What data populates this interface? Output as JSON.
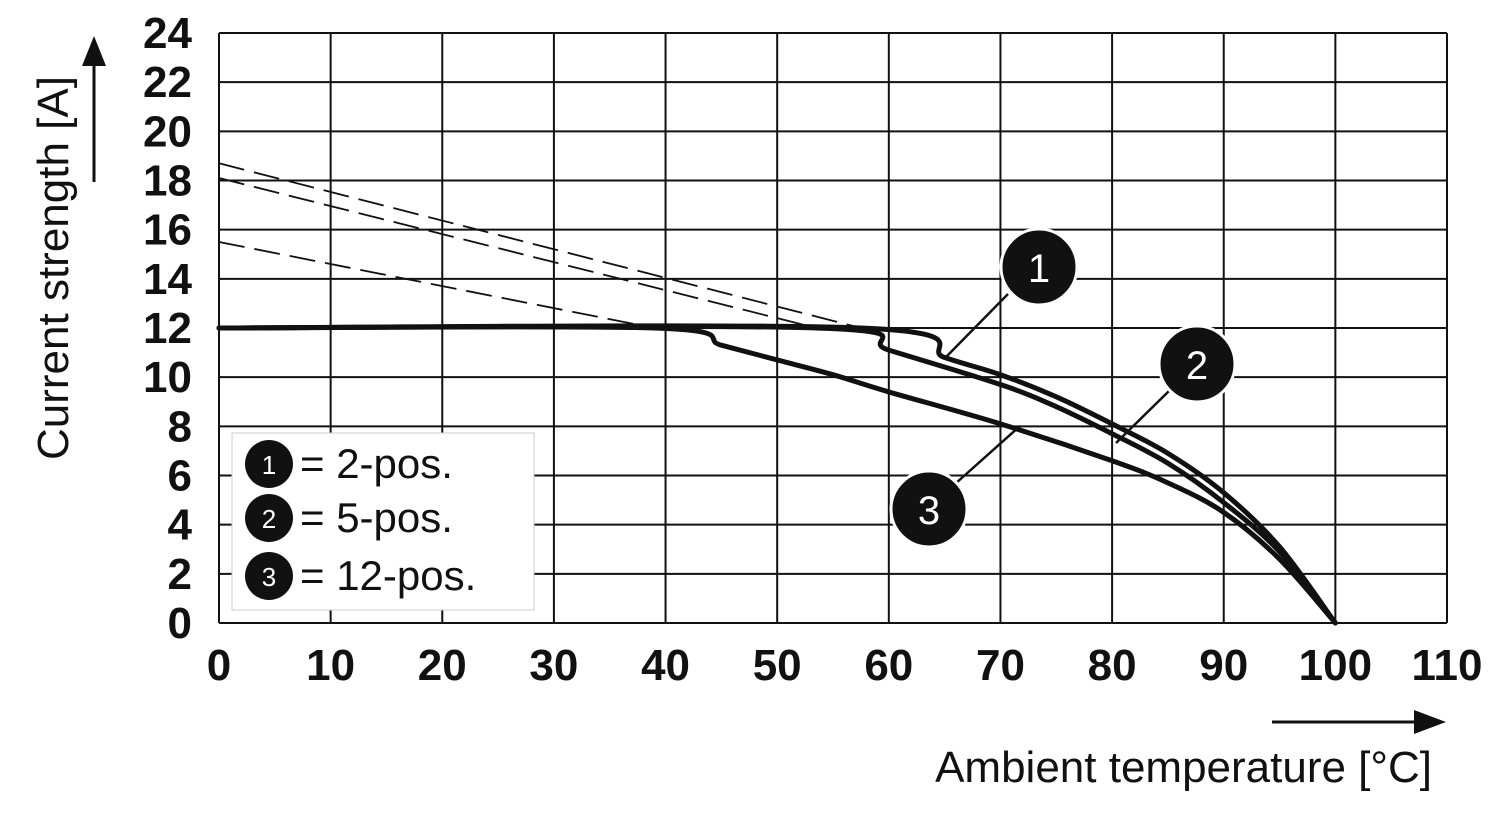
{
  "chart_data": {
    "type": "line",
    "xlabel": "Ambient temperature [°C]",
    "ylabel": "Current strength [A]",
    "xlim": [
      0,
      110
    ],
    "ylim": [
      0,
      24
    ],
    "x_ticks": [
      "0",
      "10",
      "20",
      "30",
      "40",
      "50",
      "60",
      "70",
      "80",
      "90",
      "100",
      "110"
    ],
    "y_ticks": [
      "0",
      "2",
      "4",
      "6",
      "8",
      "10",
      "12",
      "14",
      "16",
      "18",
      "20",
      "22",
      "24"
    ],
    "grid": true,
    "legend_position": "bottom-left",
    "series": [
      {
        "name": "2-pos.",
        "marker": "1",
        "points": [
          [
            0,
            12
          ],
          [
            57.5,
            12
          ],
          [
            65,
            10.8
          ],
          [
            70,
            10.1
          ],
          [
            75,
            9.2
          ],
          [
            80,
            8.1
          ],
          [
            85,
            6.9
          ],
          [
            90,
            5.3
          ],
          [
            95,
            3.1
          ],
          [
            100,
            0
          ]
        ],
        "extrapolation": [
          [
            0,
            18.7
          ],
          [
            57.5,
            12
          ]
        ]
      },
      {
        "name": "5-pos.",
        "marker": "2",
        "points": [
          [
            0,
            12
          ],
          [
            53.5,
            12
          ],
          [
            60,
            11.1
          ],
          [
            70,
            9.7
          ],
          [
            75,
            8.8
          ],
          [
            80,
            7.7
          ],
          [
            85,
            6.5
          ],
          [
            90,
            4.9
          ],
          [
            95,
            2.9
          ],
          [
            100,
            0
          ]
        ],
        "extrapolation": [
          [
            0,
            18.1
          ],
          [
            53.5,
            12
          ]
        ]
      },
      {
        "name": "12-pos.",
        "marker": "3",
        "points": [
          [
            0,
            12
          ],
          [
            39,
            12
          ],
          [
            45,
            11.3
          ],
          [
            50,
            10.7
          ],
          [
            55,
            10.1
          ],
          [
            60,
            9.4
          ],
          [
            70,
            8.1
          ],
          [
            80,
            6.6
          ],
          [
            85,
            5.7
          ],
          [
            90,
            4.5
          ],
          [
            95,
            2.6
          ],
          [
            100,
            0
          ]
        ],
        "extrapolation": [
          [
            0,
            15.5
          ],
          [
            39,
            12
          ]
        ]
      }
    ],
    "legend": [
      {
        "marker": "1",
        "label": "= 2-pos."
      },
      {
        "marker": "2",
        "label": "= 5-pos."
      },
      {
        "marker": "3",
        "label": "= 12-pos."
      }
    ]
  }
}
